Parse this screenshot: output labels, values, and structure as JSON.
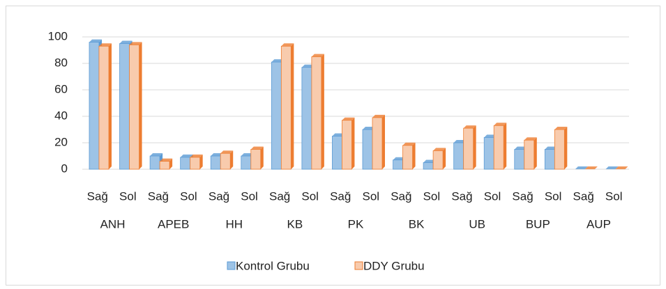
{
  "chart_data": {
    "type": "bar3d",
    "categories": [
      "Sağ",
      "Sol",
      "Sağ",
      "Sol",
      "Sağ",
      "Sol",
      "Sağ",
      "Sol",
      "Sağ",
      "Sol",
      "Sağ",
      "Sol",
      "Sağ",
      "Sol",
      "Sağ",
      "Sol",
      "Sağ",
      "Sol"
    ],
    "category_groups": [
      "ANH",
      "APEB",
      "HH",
      "KB",
      "PK",
      "BK",
      "UB",
      "BUP",
      "AUP"
    ],
    "series": [
      {
        "name": "Kontrol Grubu",
        "color": "#9dc3e6",
        "edge": "#5b9bd5",
        "values": [
          96,
          95,
          10,
          9,
          10,
          10,
          81,
          77,
          25,
          30,
          7,
          5,
          20,
          24,
          15,
          15,
          0,
          0
        ]
      },
      {
        "name": "DDY Grubu",
        "color": "#f8cbad",
        "edge": "#ed7d31",
        "values": [
          93,
          94,
          6,
          9,
          12,
          15,
          93,
          85,
          37,
          39,
          18,
          14,
          31,
          33,
          22,
          30,
          0,
          0
        ]
      }
    ],
    "ylim": [
      0,
      100
    ],
    "yticks": [
      0,
      20,
      40,
      60,
      80,
      100
    ],
    "grid": true,
    "legend": "bottom"
  }
}
